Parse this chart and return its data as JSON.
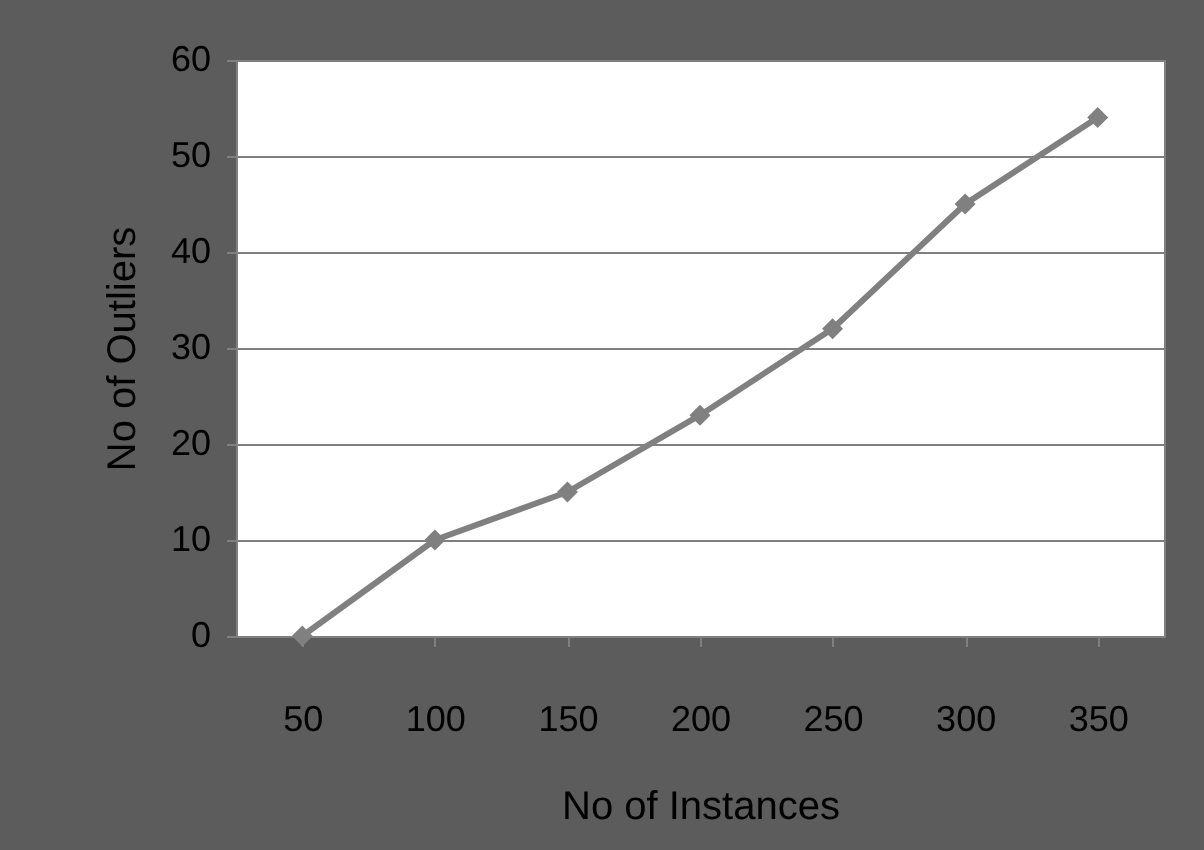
{
  "chart_data": {
    "type": "line",
    "xlabel": "No of Instances",
    "ylabel": "No of Outliers",
    "categories": [
      "50",
      "100",
      "150",
      "200",
      "250",
      "300",
      "350"
    ],
    "series": [
      {
        "color": "#808080",
        "values": [
          0,
          10,
          15,
          23,
          32,
          45,
          54
        ]
      }
    ],
    "ylim": [
      0,
      60
    ],
    "yticks": [
      0,
      10,
      20,
      30,
      40,
      50,
      60
    ],
    "grid": "y",
    "marker": "diamond",
    "line_style": "solid"
  }
}
